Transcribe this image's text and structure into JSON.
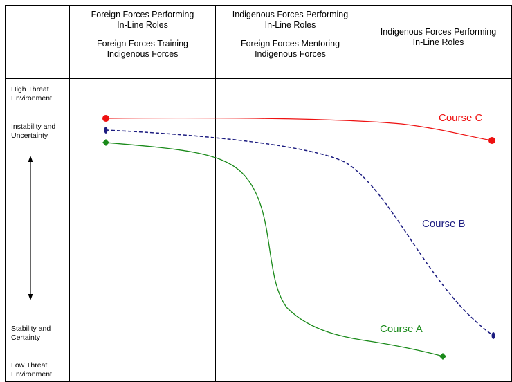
{
  "columns": [
    {
      "line1": "Foreign Forces Performing",
      "line2": "In-Line Roles",
      "line3": "Foreign Forces Training",
      "line4": "Indigenous Forces"
    },
    {
      "line1": "Indigenous Forces Performing",
      "line2": "In-Line Roles",
      "line3": "Foreign Forces Mentoring",
      "line4": "Indigenous Forces"
    },
    {
      "line1": "Indigenous Forces Performing",
      "line2": "In-Line Roles"
    }
  ],
  "y_axis": {
    "top_label_1": "High Threat",
    "top_label_2": "Environment",
    "upper_label_1": "Instability and",
    "upper_label_2": "Uncertainty",
    "lower_label_1": "Stability and",
    "lower_label_2": "Certainty",
    "bottom_label_1": "Low Threat",
    "bottom_label_2": "Environment"
  },
  "courses": {
    "a": {
      "label": "Course A",
      "color": "#1a8a1a"
    },
    "b": {
      "label": "Course B",
      "color": "#1c1c80"
    },
    "c": {
      "label": "Course C",
      "color": "#ee1111"
    }
  }
}
